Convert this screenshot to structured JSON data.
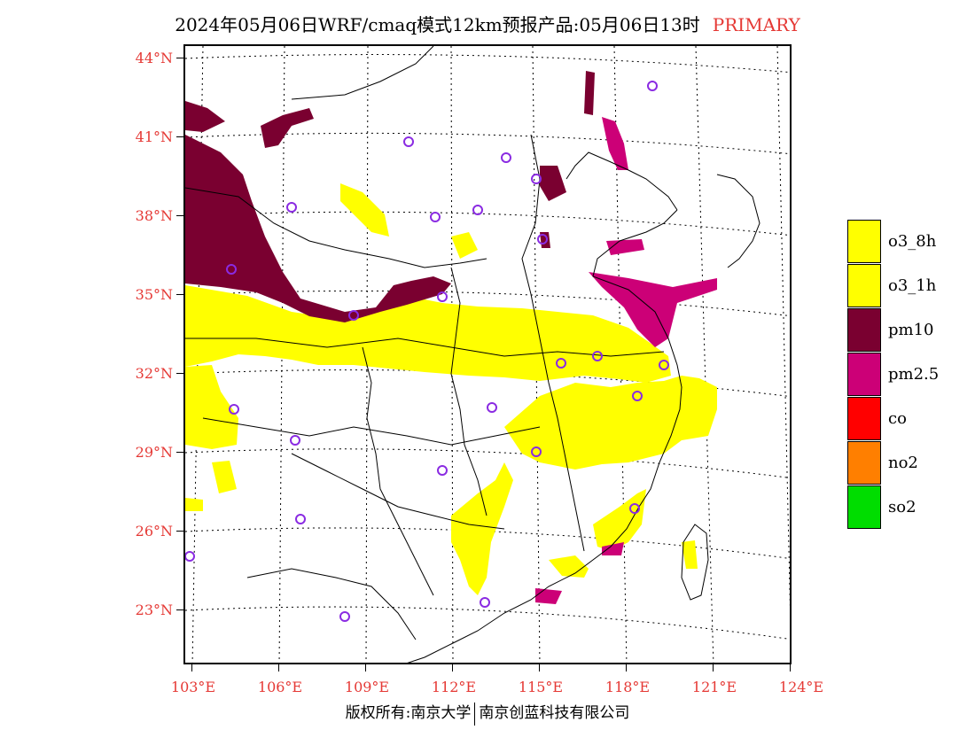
{
  "title": {
    "main": "2024年05月06日WRF/cmaq模式12km预报产品:05月06日13时",
    "tag": "PRIMARY"
  },
  "axes": {
    "lat_labels": [
      "44°N",
      "41°N",
      "38°N",
      "35°N",
      "32°N",
      "29°N",
      "26°N",
      "23°N"
    ],
    "lon_labels": [
      "103°E",
      "106°E",
      "109°E",
      "112°E",
      "115°E",
      "118°E",
      "121°E",
      "124°E"
    ]
  },
  "legend": [
    {
      "label": "o3_8h",
      "color": "#ffff00"
    },
    {
      "label": "o3_1h",
      "color": "#ffff00"
    },
    {
      "label": "pm10",
      "color": "#7a0030"
    },
    {
      "label": "pm2.5",
      "color": "#cc0077"
    },
    {
      "label": "co",
      "color": "#ff0000"
    },
    {
      "label": "no2",
      "color": "#ff7f00"
    },
    {
      "label": "so2",
      "color": "#00dd00"
    }
  ],
  "footer": {
    "left": "版权所有:南京大学",
    "right": "南京创蓝科技有限公司"
  },
  "colors": {
    "o3": "#ffff00",
    "pm10": "#7a0030",
    "pm25": "#cc0077",
    "station": "#8a2be2",
    "axis_text": "#e53935"
  }
}
